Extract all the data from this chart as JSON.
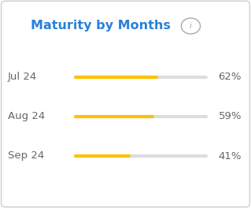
{
  "title": "Maturity by Months",
  "categories": [
    "Jul 24",
    "Aug 24",
    "Sep 24"
  ],
  "values": [
    62,
    59,
    41
  ],
  "bar_color": "#FFC107",
  "bg_color": "#FFFFFF",
  "border_color": "#CCCCCC",
  "track_color": "#DDDDDD",
  "title_color": "#2980d9",
  "label_color": "#666666",
  "pct_color": "#666666",
  "title_fontsize": 11.5,
  "label_fontsize": 9.5,
  "pct_fontsize": 9.5,
  "line_lw_track": 3.0,
  "line_lw_fill": 3.0,
  "max_value": 100
}
